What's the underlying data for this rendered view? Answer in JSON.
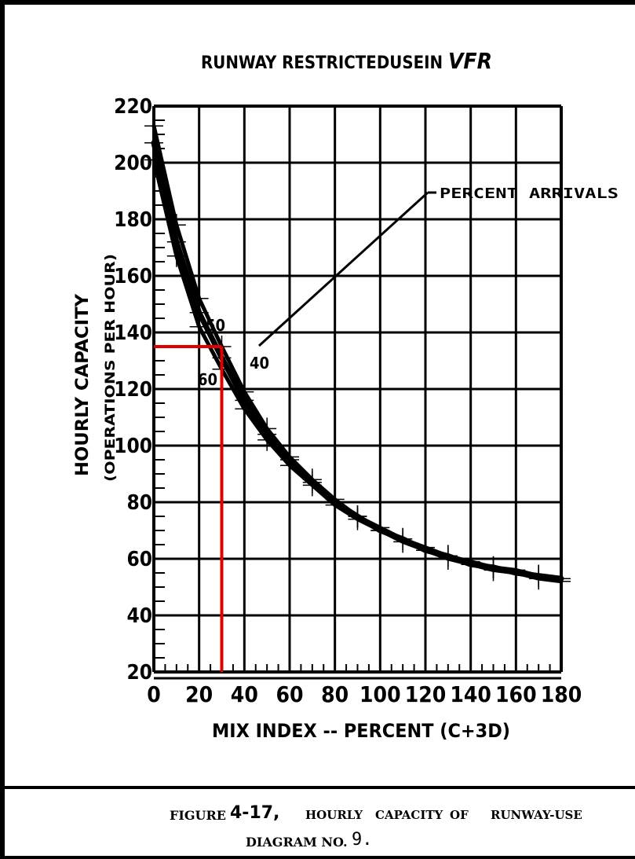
{
  "chart_data": {
    "type": "line",
    "title": "RUNWAY RESTRICTEDUSEIN",
    "title_emphasis": "VFR",
    "xlabel": "MIX INDEX -- PERCENT (C+3D)",
    "ylabel": "HOURLY CAPACITY",
    "ylabel_sub": "(OPERATIONS PER HOUR)",
    "xlim": [
      0,
      180
    ],
    "ylim": [
      20,
      220
    ],
    "x_ticks": [
      "0",
      "20",
      "40",
      "60",
      "80",
      "100",
      "120",
      "140",
      "160",
      "180"
    ],
    "y_ticks": [
      "20",
      "40",
      "60",
      "80",
      "100",
      "120",
      "140",
      "160",
      "180",
      "200",
      "220"
    ],
    "grid": true,
    "series": [
      {
        "name": "40",
        "x": [
          0,
          10,
          20,
          30,
          40,
          50,
          60,
          70,
          80,
          90,
          100,
          110,
          120,
          130,
          140,
          150,
          160,
          170,
          180
        ],
        "values": [
          213,
          178,
          152,
          135,
          119,
          106,
          96,
          88,
          81,
          75,
          71,
          67,
          64,
          61,
          59,
          57,
          56,
          54,
          53
        ]
      },
      {
        "name": "50",
        "x": [
          0,
          10,
          20,
          30,
          40,
          50,
          60,
          70,
          80,
          90,
          100,
          110,
          120,
          130,
          140,
          150,
          160,
          170,
          180
        ],
        "values": [
          207,
          172,
          147,
          131,
          116,
          104,
          95,
          87,
          80,
          75,
          70,
          67,
          63,
          61,
          58,
          57,
          55,
          54,
          53
        ]
      },
      {
        "name": "60",
        "x": [
          0,
          10,
          20,
          30,
          40,
          50,
          60,
          70,
          80,
          90,
          100,
          110,
          120,
          130,
          140,
          150,
          160,
          170,
          180
        ],
        "values": [
          201,
          167,
          142,
          127,
          113,
          102,
          93,
          86,
          79,
          74,
          70,
          66,
          63,
          60,
          58,
          56,
          55,
          53,
          52
        ]
      }
    ],
    "annotation": "PERCENT ARRIVALS",
    "reading": {
      "mix_index": 30,
      "capacity": 135,
      "color": "#e00000"
    }
  },
  "caption": {
    "figure_label": "FIGURE",
    "figure_number": "4-17,",
    "words": [
      "HOURLY",
      "CAPACITY",
      "OF",
      "RUNWAY-USE"
    ],
    "line2": "DIAGRAM NO.",
    "diagram_number": "9."
  },
  "colors": {
    "ink": "#000000",
    "paper": "#ffffff",
    "reading_line": "#e00000"
  }
}
